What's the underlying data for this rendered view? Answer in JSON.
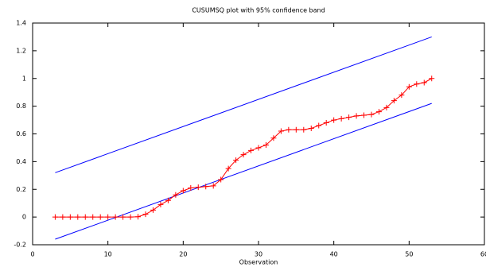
{
  "chart_data": {
    "type": "line",
    "title": "CUSUMSQ plot with 95% confidence band",
    "xlabel": "Observation",
    "x": [
      3,
      4,
      5,
      6,
      7,
      8,
      9,
      10,
      11,
      12,
      13,
      14,
      15,
      16,
      17,
      18,
      19,
      20,
      21,
      22,
      23,
      24,
      25,
      26,
      27,
      28,
      29,
      30,
      31,
      32,
      33,
      34,
      35,
      36,
      37,
      38,
      39,
      40,
      41,
      42,
      43,
      44,
      45,
      46,
      47,
      48,
      49,
      50,
      51,
      52,
      53
    ],
    "values": [
      0,
      0,
      0,
      0,
      0,
      0,
      0,
      0,
      0,
      0,
      0,
      0.002,
      0.02,
      0.05,
      0.09,
      0.12,
      0.16,
      0.19,
      0.21,
      0.215,
      0.22,
      0.225,
      0.27,
      0.35,
      0.41,
      0.45,
      0.48,
      0.5,
      0.52,
      0.57,
      0.62,
      0.63,
      0.63,
      0.63,
      0.64,
      0.66,
      0.68,
      0.7,
      0.71,
      0.72,
      0.73,
      0.735,
      0.74,
      0.76,
      0.79,
      0.84,
      0.88,
      0.94,
      0.96,
      0.97,
      1.0
    ],
    "color": "#ff0000",
    "bands": [
      {
        "x": [
          3,
          53
        ],
        "values": [
          0.32,
          1.3
        ],
        "color": "#0000ff"
      },
      {
        "x": [
          3,
          53
        ],
        "values": [
          -0.16,
          0.82
        ],
        "color": "#0000ff"
      }
    ],
    "xlim": [
      0,
      60
    ],
    "ylim": [
      -0.2,
      1.4
    ],
    "xticks": [
      0,
      10,
      20,
      30,
      40,
      50,
      60
    ],
    "yticks": [
      -0.2,
      0,
      0.2,
      0.4,
      0.6,
      0.8,
      1,
      1.2,
      1.4
    ]
  }
}
